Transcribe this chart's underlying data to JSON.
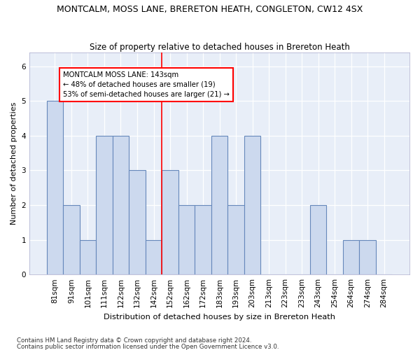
{
  "title": "MONTCALM, MOSS LANE, BRERETON HEATH, CONGLETON, CW12 4SX",
  "subtitle": "Size of property relative to detached houses in Brereton Heath",
  "xlabel": "Distribution of detached houses by size in Brereton Heath",
  "ylabel": "Number of detached properties",
  "categories": [
    "81sqm",
    "91sqm",
    "101sqm",
    "111sqm",
    "122sqm",
    "132sqm",
    "142sqm",
    "152sqm",
    "162sqm",
    "172sqm",
    "183sqm",
    "193sqm",
    "203sqm",
    "213sqm",
    "223sqm",
    "233sqm",
    "243sqm",
    "254sqm",
    "264sqm",
    "274sqm",
    "284sqm"
  ],
  "values": [
    5,
    2,
    1,
    4,
    4,
    3,
    1,
    3,
    2,
    2,
    4,
    2,
    4,
    0,
    0,
    0,
    2,
    0,
    1,
    1,
    0
  ],
  "bar_color": "#ccd9ee",
  "bar_edge_color": "#6688bb",
  "reference_line_index": 6.5,
  "reference_label": "MONTCALM MOSS LANE: 143sqm",
  "annotation_line1": "← 48% of detached houses are smaller (19)",
  "annotation_line2": "53% of semi-detached houses are larger (21) →",
  "annotation_box_color": "white",
  "annotation_box_edge": "red",
  "ylim_max": 6.4,
  "background_color": "#e8eef8",
  "footer1": "Contains HM Land Registry data © Crown copyright and database right 2024.",
  "footer2": "Contains public sector information licensed under the Open Government Licence v3.0."
}
